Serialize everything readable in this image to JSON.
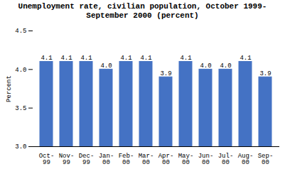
{
  "chart_data": {
    "type": "bar",
    "title": "Unemployment rate, civilian population, October 1999-\nSeptember 2000 (percent)",
    "categories": [
      "Oct-\n99",
      "Nov-\n99",
      "Dec-\n99",
      "Jan-\n00",
      "Feb-\n00",
      "Mar-\n00",
      "Apr-\n00",
      "May-\n00",
      "Jun-\n00",
      "Jul-\n00",
      "Aug-\n00",
      "Sep-\n00"
    ],
    "values": [
      4.1,
      4.1,
      4.1,
      4.0,
      4.1,
      4.1,
      3.9,
      4.1,
      4.0,
      4.0,
      4.1,
      3.9
    ],
    "value_labels": [
      "4.1",
      "4.1",
      "4.1",
      "4.0",
      "4.1",
      "4.1",
      "3.9",
      "4.1",
      "4.0",
      "4.0",
      "4.1",
      "3.9"
    ],
    "data_labels": true,
    "color": "#4472C4",
    "ylabel": "Percent",
    "ylim": [
      3.0,
      4.5
    ],
    "yticks": [
      {
        "value": 3.0,
        "label": "3.0"
      },
      3.5,
      {
        "value": 4.0,
        "label": "4.0"
      },
      4.5
    ],
    "grid": false
  }
}
